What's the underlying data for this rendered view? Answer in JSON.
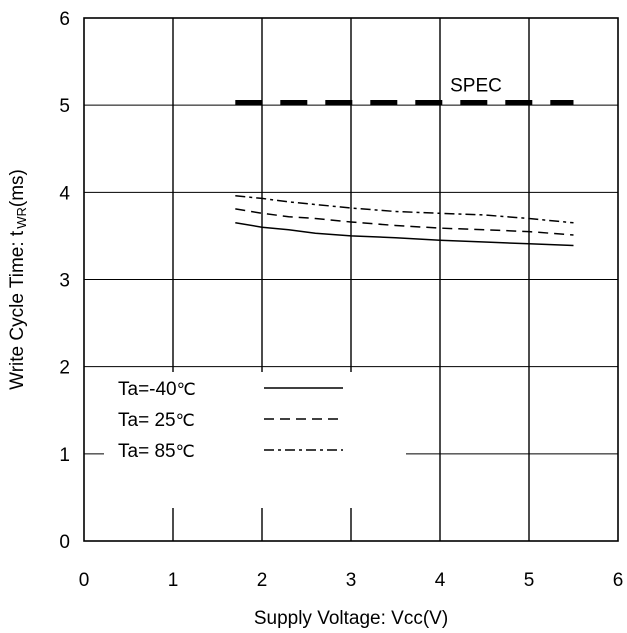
{
  "chart_data": {
    "type": "line",
    "xlabel": "Supply Voltage: Vcc(V)",
    "ylabel_main": "Write Cycle Time: t",
    "ylabel_sub": "WR",
    "ylabel_unit": "(ms)",
    "xlim": [
      0,
      6
    ],
    "ylim": [
      0,
      6
    ],
    "xticks": [
      "0",
      "1",
      "2",
      "3",
      "4",
      "5",
      "6"
    ],
    "yticks": [
      "0",
      "1",
      "2",
      "3",
      "4",
      "5",
      "6"
    ],
    "grid": true,
    "legend_position": "lower-left",
    "spec": {
      "label": "SPEC",
      "value": 5.03,
      "x_range": [
        1.7,
        5.5
      ]
    },
    "series": [
      {
        "name_main": "Ta=-40",
        "name_unit": "℃",
        "dash": "solid",
        "x": [
          1.7,
          2.0,
          2.3,
          2.6,
          3.0,
          3.5,
          4.0,
          4.5,
          5.0,
          5.5
        ],
        "y": [
          3.65,
          3.6,
          3.57,
          3.53,
          3.5,
          3.48,
          3.45,
          3.43,
          3.41,
          3.39
        ]
      },
      {
        "name_main": "Ta= 25",
        "name_unit": "℃",
        "dash": "dashed",
        "x": [
          1.7,
          2.0,
          2.3,
          2.6,
          3.0,
          3.5,
          4.0,
          4.5,
          5.0,
          5.5
        ],
        "y": [
          3.81,
          3.76,
          3.72,
          3.7,
          3.66,
          3.62,
          3.59,
          3.57,
          3.55,
          3.51
        ]
      },
      {
        "name_main": "Ta= 85",
        "name_unit": "℃",
        "dash": "dashdot",
        "x": [
          1.7,
          2.0,
          2.3,
          2.6,
          3.0,
          3.5,
          4.0,
          4.5,
          5.0,
          5.5
        ],
        "y": [
          3.96,
          3.93,
          3.89,
          3.86,
          3.82,
          3.78,
          3.76,
          3.74,
          3.7,
          3.65
        ]
      }
    ]
  }
}
